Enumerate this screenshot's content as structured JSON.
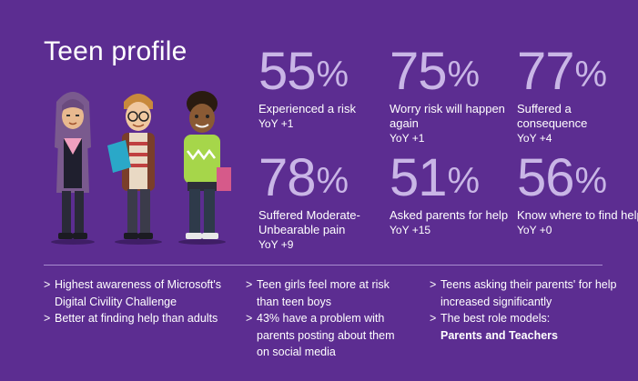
{
  "title": "Teen profile",
  "stats": [
    {
      "value": "55",
      "symbol": "%",
      "label": "Experienced a risk",
      "yoy": "YoY +1"
    },
    {
      "value": "75",
      "symbol": "%",
      "label": "Worry risk will happen again",
      "yoy": "YoY +1"
    },
    {
      "value": "77",
      "symbol": "%",
      "label": "Suffered a consequence",
      "yoy": "YoY +4"
    },
    {
      "value": "78",
      "symbol": "%",
      "label": "Suffered Moderate-Unbearable pain",
      "yoy": "YoY +9"
    },
    {
      "value": "51",
      "symbol": "%",
      "label": "Asked parents for help",
      "yoy": "YoY +15"
    },
    {
      "value": "56",
      "symbol": "%",
      "label": "Know where to find help",
      "yoy": "YoY +0"
    }
  ],
  "bullet_marker": ">",
  "columns": [
    {
      "items": [
        "Highest awareness of Microsoft's Digital Civility Challenge",
        "Better at finding help than adults"
      ]
    },
    {
      "items": [
        "Teen girls feel more at risk than teen boys",
        "43% have a problem with parents posting about them on social media"
      ]
    },
    {
      "items": [
        "Teens asking their parents' for help increased significantly",
        "The best role models:"
      ],
      "emphasis": "Parents and Teachers"
    }
  ],
  "colors": {
    "background": "#5c2d91",
    "percent": "#c9b6e6",
    "text": "#ffffff"
  }
}
